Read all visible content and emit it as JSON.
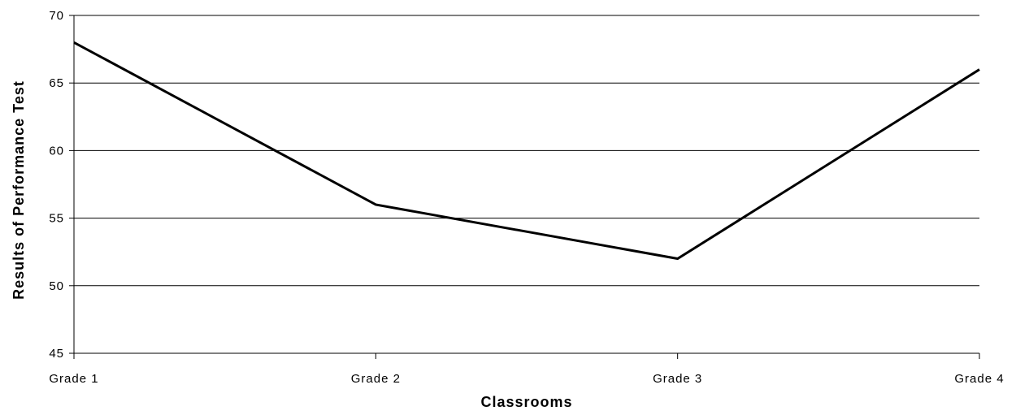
{
  "chart_data": {
    "type": "line",
    "title": "",
    "xlabel": "Classrooms",
    "ylabel": "Results of Performance Test",
    "categories": [
      "Grade 1",
      "Grade 2",
      "Grade 3",
      "Grade 4"
    ],
    "series": [
      {
        "values": [
          68,
          56,
          52,
          66
        ]
      }
    ],
    "ylim": [
      45,
      70
    ],
    "yticks": [
      45,
      50,
      55,
      60,
      65,
      70
    ],
    "grid": "horizontal",
    "legend": "none",
    "line_color": "#000000"
  }
}
